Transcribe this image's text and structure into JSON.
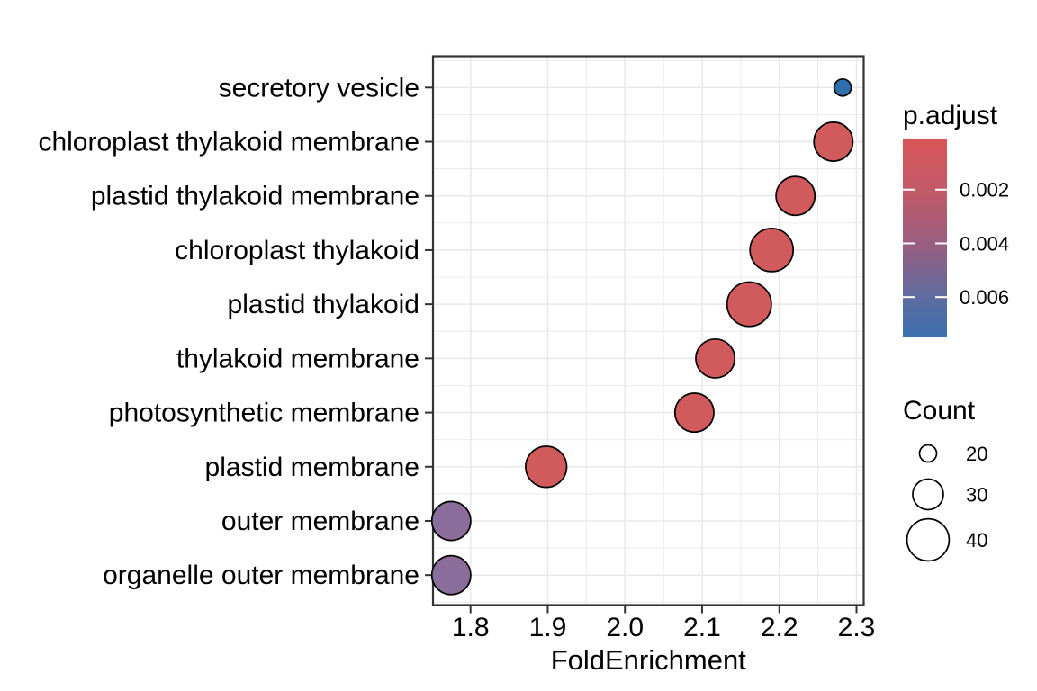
{
  "chart_data": {
    "type": "scatter",
    "title": "",
    "xlabel": "FoldEnrichment",
    "ylabel": "",
    "xlim": [
      1.75,
      2.31
    ],
    "x_ticks": [
      1.8,
      1.9,
      2.0,
      2.1,
      2.2,
      2.3
    ],
    "x_tick_labels": [
      "1.8",
      "1.9",
      "2.0",
      "2.1",
      "2.2",
      "2.3"
    ],
    "x_minor_ticks": [
      1.85,
      1.95,
      2.05,
      2.15,
      2.25
    ],
    "grid": true,
    "legend_position": "right",
    "categories": [
      "secretory vesicle",
      "chloroplast thylakoid membrane",
      "plastid thylakoid membrane",
      "chloroplast thylakoid",
      "plastid thylakoid",
      "thylakoid membrane",
      "photosynthetic membrane",
      "plastid membrane",
      "outer membrane",
      "organelle outer membrane"
    ],
    "points": [
      {
        "label": "secretory vesicle",
        "fold_enrichment": 2.282,
        "count": 20,
        "p_adjust": 0.007,
        "color": "#2F6EAB"
      },
      {
        "label": "chloroplast thylakoid membrane",
        "fold_enrichment": 2.27,
        "count": 37,
        "p_adjust": 0.001,
        "color": "#D15A5D"
      },
      {
        "label": "plastid thylakoid membrane",
        "fold_enrichment": 2.221,
        "count": 37,
        "p_adjust": 0.001,
        "color": "#D15A5D"
      },
      {
        "label": "chloroplast thylakoid",
        "fold_enrichment": 2.19,
        "count": 41,
        "p_adjust": 0.001,
        "color": "#D15A5D"
      },
      {
        "label": "plastid thylakoid",
        "fold_enrichment": 2.161,
        "count": 42,
        "p_adjust": 0.001,
        "color": "#D15A5D"
      },
      {
        "label": "thylakoid membrane",
        "fold_enrichment": 2.117,
        "count": 37,
        "p_adjust": 0.001,
        "color": "#D15A5D"
      },
      {
        "label": "photosynthetic membrane",
        "fold_enrichment": 2.09,
        "count": 37,
        "p_adjust": 0.001,
        "color": "#D15A5D"
      },
      {
        "label": "plastid membrane",
        "fold_enrichment": 1.898,
        "count": 39,
        "p_adjust": 0.001,
        "color": "#D15A5D"
      },
      {
        "label": "outer membrane",
        "fold_enrichment": 1.775,
        "count": 37,
        "p_adjust": 0.005,
        "color": "#8B6D9B"
      },
      {
        "label": "organelle outer membrane",
        "fold_enrichment": 1.775,
        "count": 37,
        "p_adjust": 0.005,
        "color": "#8B6D9B"
      }
    ],
    "color_legend": {
      "title": "p.adjust",
      "tick_labels": [
        "0.002",
        "0.004",
        "0.006"
      ],
      "tick_values": [
        0.002,
        0.004,
        0.006
      ],
      "range": [
        0.0001,
        0.0075
      ],
      "gradient": [
        "#D85558",
        "#C25A68",
        "#9A5E80",
        "#5E6CA0",
        "#3B70AE"
      ]
    },
    "size_legend": {
      "title": "Count",
      "values": [
        20,
        30,
        40
      ],
      "labels": [
        "20",
        "30",
        "40"
      ]
    }
  },
  "style": {
    "red": "#D15A5D",
    "purple": "#8B6D9B",
    "blue": "#2F6EAB",
    "grid_color": "#E8E8E8",
    "axis_color": "#333333",
    "text_color": "#000000",
    "background": "#FFFFFF"
  }
}
